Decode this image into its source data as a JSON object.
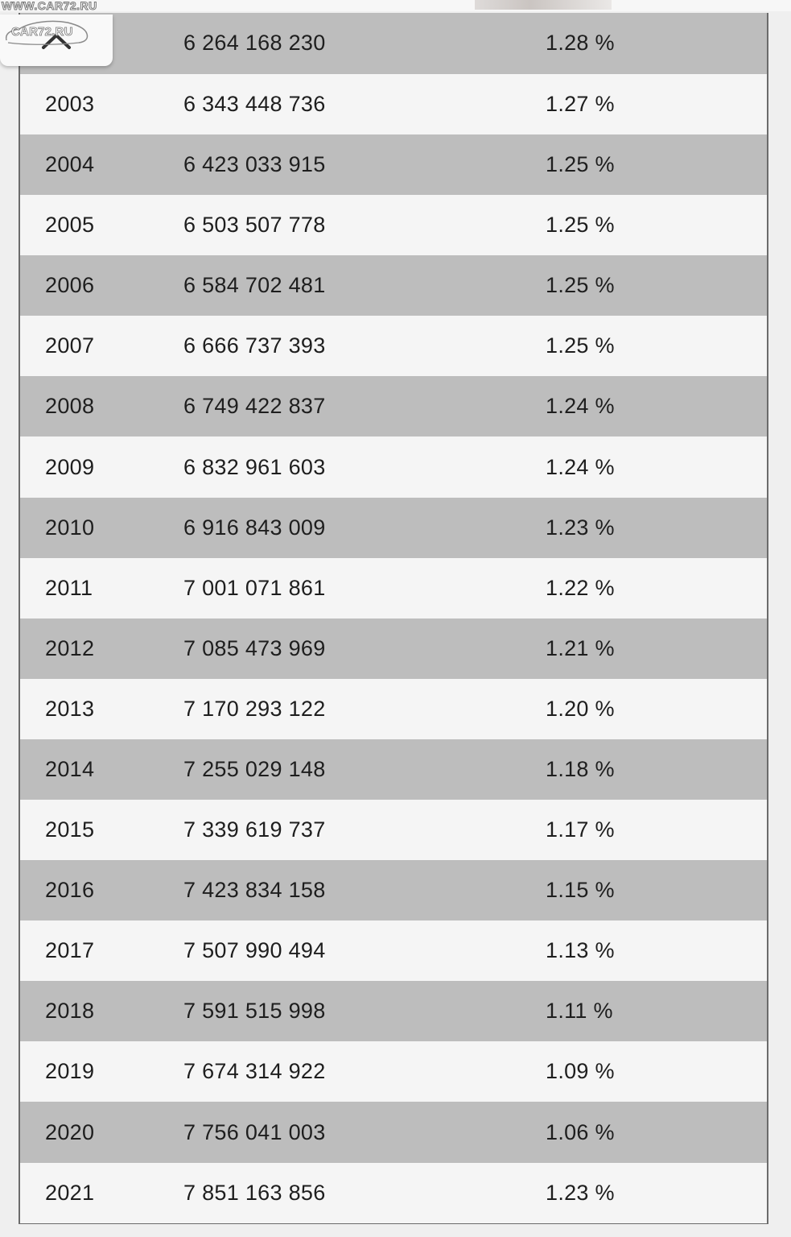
{
  "watermark": {
    "url": "WWW.CAR72.RU",
    "logo": "CAR72.RU"
  },
  "scroll_top": {
    "icon": "chevron-up-icon"
  },
  "table": {
    "rows": [
      {
        "year": "",
        "population": "6 264 168 230",
        "growth": "1.28 %"
      },
      {
        "year": "2003",
        "population": "6 343 448 736",
        "growth": "1.27 %"
      },
      {
        "year": "2004",
        "population": "6 423 033 915",
        "growth": "1.25 %"
      },
      {
        "year": "2005",
        "population": "6 503 507 778",
        "growth": "1.25 %"
      },
      {
        "year": "2006",
        "population": "6 584 702 481",
        "growth": "1.25 %"
      },
      {
        "year": "2007",
        "population": "6 666 737 393",
        "growth": "1.25 %"
      },
      {
        "year": "2008",
        "population": "6 749 422 837",
        "growth": "1.24 %"
      },
      {
        "year": "2009",
        "population": "6 832 961 603",
        "growth": "1.24 %"
      },
      {
        "year": "2010",
        "population": "6 916 843 009",
        "growth": "1.23 %"
      },
      {
        "year": "2011",
        "population": "7 001 071 861",
        "growth": "1.22 %"
      },
      {
        "year": "2012",
        "population": "7 085 473 969",
        "growth": "1.21 %"
      },
      {
        "year": "2013",
        "population": "7 170 293 122",
        "growth": "1.20 %"
      },
      {
        "year": "2014",
        "population": "7 255 029 148",
        "growth": "1.18 %"
      },
      {
        "year": "2015",
        "population": "7 339 619 737",
        "growth": "1.17 %"
      },
      {
        "year": "2016",
        "population": "7 423 834 158",
        "growth": "1.15 %"
      },
      {
        "year": "2017",
        "population": "7 507 990 494",
        "growth": "1.13 %"
      },
      {
        "year": "2018",
        "population": "7 591 515 998",
        "growth": "1.11 %"
      },
      {
        "year": "2019",
        "population": "7 674 314 922",
        "growth": "1.09 %"
      },
      {
        "year": "2020",
        "population": "7 756 041 003",
        "growth": "1.06 %"
      },
      {
        "year": "2021",
        "population": "7 851 163 856",
        "growth": "1.23 %"
      }
    ]
  },
  "colors": {
    "row_dark": "#bdbdbd",
    "row_light": "#f5f5f5",
    "border": "#6b6b6b",
    "text": "#1e1e1e"
  }
}
